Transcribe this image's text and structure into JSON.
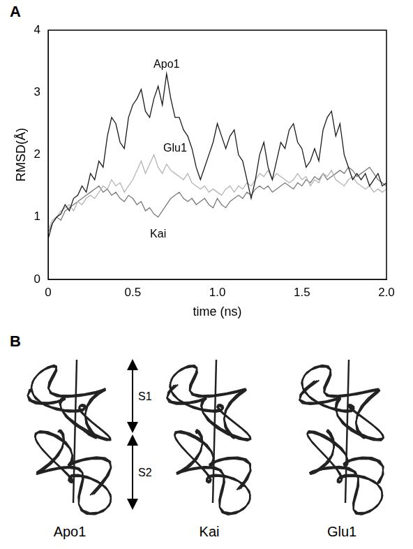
{
  "chart_data": {
    "type": "line",
    "panel": "A",
    "x_label": "time (ns)",
    "y_label": "RMSD(Å)",
    "xlim": [
      0,
      2
    ],
    "xticks": [
      0,
      0.5,
      {
        "value": 1,
        "label": "1.0"
      },
      1.5,
      {
        "value": 2,
        "label": "2.0"
      }
    ],
    "ylim": [
      0,
      4
    ],
    "yticks": [
      0,
      1,
      2,
      3,
      4
    ],
    "grid": false,
    "x": [
      0,
      0.025,
      0.05,
      0.075,
      0.1,
      0.125,
      0.15,
      0.175,
      0.2,
      0.225,
      0.25,
      0.275,
      0.3,
      0.325,
      0.35,
      0.375,
      0.4,
      0.425,
      0.45,
      0.475,
      0.5,
      0.525,
      0.55,
      0.575,
      0.6,
      0.625,
      0.65,
      0.675,
      0.7,
      0.725,
      0.75,
      0.775,
      0.8,
      0.825,
      0.85,
      0.875,
      0.9,
      0.925,
      0.95,
      0.975,
      1,
      1.025,
      1.05,
      1.075,
      1.1,
      1.125,
      1.15,
      1.175,
      1.2,
      1.225,
      1.25,
      1.275,
      1.3,
      1.325,
      1.35,
      1.375,
      1.4,
      1.425,
      1.45,
      1.475,
      1.5,
      1.525,
      1.55,
      1.575,
      1.6,
      1.625,
      1.65,
      1.675,
      1.7,
      1.725,
      1.75,
      1.775,
      1.8,
      1.825,
      1.85,
      1.875,
      1.9,
      1.925,
      1.95,
      1.975,
      2
    ],
    "series": [
      {
        "name": "Apo1",
        "color": "#1a1a1a",
        "values": [
          0.65,
          0.9,
          1.0,
          1.05,
          1.2,
          1.1,
          1.3,
          1.35,
          1.5,
          1.4,
          1.7,
          1.6,
          1.9,
          1.8,
          2.3,
          2.6,
          2.5,
          2.2,
          2.1,
          2.6,
          2.8,
          2.9,
          3.05,
          2.7,
          2.6,
          2.9,
          3.1,
          2.8,
          3.3,
          2.9,
          2.6,
          2.6,
          2.4,
          2.3,
          2.1,
          1.8,
          1.6,
          1.8,
          2.0,
          2.2,
          2.5,
          2.3,
          2.1,
          2.3,
          2.4,
          2.0,
          1.9,
          1.6,
          1.3,
          1.6,
          2.0,
          2.2,
          1.8,
          1.6,
          1.9,
          2.2,
          2.1,
          2.4,
          2.5,
          2.2,
          2.1,
          1.8,
          1.9,
          2.1,
          1.9,
          2.4,
          2.6,
          2.7,
          2.3,
          2.5,
          2.0,
          1.8,
          1.6,
          1.7,
          1.6,
          1.7,
          1.5,
          1.6,
          1.7,
          1.5,
          1.55
        ]
      },
      {
        "name": "Glu1",
        "color": "#b4b4b4",
        "values": [
          0.8,
          0.95,
          1.0,
          1.1,
          1.15,
          1.2,
          1.1,
          1.25,
          1.2,
          1.3,
          1.35,
          1.3,
          1.4,
          1.5,
          1.45,
          1.6,
          1.5,
          1.55,
          1.4,
          1.5,
          1.6,
          1.75,
          1.9,
          1.7,
          1.85,
          2.0,
          1.8,
          1.7,
          1.85,
          1.75,
          1.7,
          1.65,
          1.6,
          1.7,
          1.55,
          1.5,
          1.45,
          1.5,
          1.4,
          1.45,
          1.4,
          1.35,
          1.45,
          1.5,
          1.4,
          1.5,
          1.45,
          1.55,
          1.5,
          1.6,
          1.7,
          1.65,
          1.75,
          1.6,
          1.7,
          1.65,
          1.6,
          1.55,
          1.6,
          1.7,
          1.6,
          1.65,
          1.5,
          1.6,
          1.55,
          1.7,
          1.65,
          1.75,
          1.6,
          1.55,
          1.5,
          1.6,
          1.65,
          1.55,
          1.5,
          1.45,
          1.5,
          1.4,
          1.45,
          1.4,
          1.45
        ]
      },
      {
        "name": "Kai",
        "color": "#7a7a7a",
        "values": [
          0.75,
          0.9,
          1.0,
          0.95,
          1.1,
          1.15,
          1.2,
          1.25,
          1.3,
          1.35,
          1.4,
          1.45,
          1.5,
          1.4,
          1.45,
          1.35,
          1.4,
          1.3,
          1.25,
          1.35,
          1.3,
          1.2,
          1.25,
          1.1,
          1.15,
          1.05,
          1.0,
          1.1,
          1.2,
          1.3,
          1.35,
          1.4,
          1.3,
          1.25,
          1.3,
          1.2,
          1.25,
          1.3,
          1.2,
          1.15,
          1.3,
          1.2,
          1.15,
          1.25,
          1.3,
          1.35,
          1.3,
          1.4,
          1.35,
          1.45,
          1.5,
          1.45,
          1.5,
          1.4,
          1.45,
          1.5,
          1.55,
          1.5,
          1.45,
          1.55,
          1.5,
          1.6,
          1.55,
          1.65,
          1.6,
          1.7,
          1.6,
          1.65,
          1.7,
          1.75,
          1.7,
          1.8,
          1.75,
          1.65,
          1.7,
          1.75,
          1.8,
          1.7,
          1.6,
          1.55,
          1.5
        ]
      }
    ],
    "annotations": [
      {
        "text": "Apo1",
        "x": 0.7,
        "y": 3.45
      },
      {
        "text": "Glu1",
        "x": 0.75,
        "y": 2.1
      },
      {
        "text": "Kai",
        "x": 0.65,
        "y": 0.72
      }
    ]
  },
  "structures": {
    "panel": "B",
    "domains": [
      "S1",
      "S2"
    ],
    "models": [
      "Apo1",
      "Kai",
      "Glu1"
    ]
  }
}
